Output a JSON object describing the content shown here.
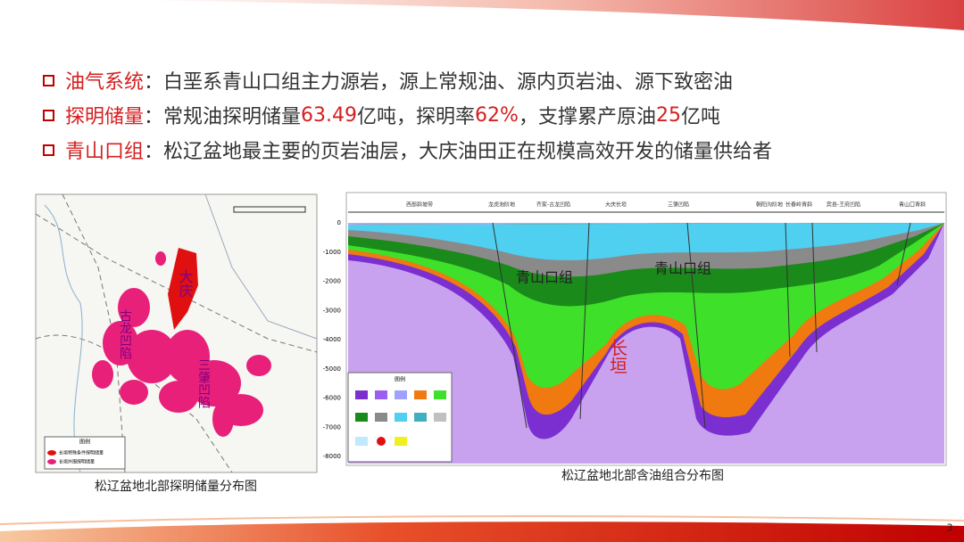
{
  "bullets": [
    {
      "label": "油气系统",
      "parts": [
        {
          "text": "：白垩系青山口组主力源岩，源上常规油、源内页岩油、源下致密油",
          "color": "#333333"
        }
      ]
    },
    {
      "label": "探明储量",
      "parts": [
        {
          "text": "：常规油探明储量",
          "color": "#333333"
        },
        {
          "text": "63.49",
          "color": "#d42020"
        },
        {
          "text": "亿吨，探明率",
          "color": "#333333"
        },
        {
          "text": "62%",
          "color": "#d42020"
        },
        {
          "text": "，支撑累产原油",
          "color": "#333333"
        },
        {
          "text": "25",
          "color": "#d42020"
        },
        {
          "text": "亿吨",
          "color": "#333333"
        }
      ]
    },
    {
      "label": "青山口组",
      "parts": [
        {
          "text": "：松辽盆地最主要的页岩油层，大庆油田正在规模高效开发的储量供给者",
          "color": "#333333"
        }
      ]
    }
  ],
  "map": {
    "caption": "松辽盆地北部探明储量分布图",
    "labels": [
      "大庆",
      "古龙凹陷",
      "三肇凹陷"
    ],
    "legend_title": "图例",
    "legend_items": [
      "长垣特殊条件探明储量",
      "长垣外围探明储量"
    ]
  },
  "section": {
    "caption": "松辽盆地北部含油组合分布图",
    "zones": [
      "西部斜坡带",
      "龙虎泡阶地",
      "齐家-古龙凹陷",
      "大庆长垣",
      "三肇凹陷",
      "朝阳沟阶地",
      "长春岭背斜",
      "宾县-王府凹陷",
      "青山口背斜"
    ],
    "depth_ticks": [
      0,
      -1000,
      -2000,
      -3000,
      -4000,
      -5000,
      -6000,
      -7000,
      -8000
    ],
    "labels": [
      "青山口组",
      "青山口组",
      "长垣"
    ],
    "legend_title": "图例"
  },
  "page_number": "3"
}
